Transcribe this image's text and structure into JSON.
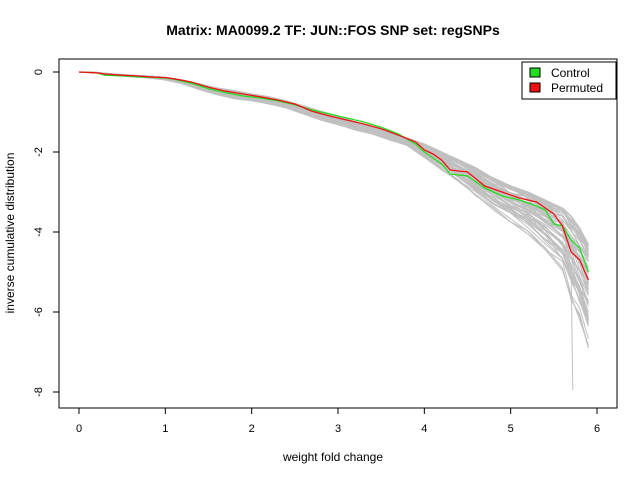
{
  "chart_data": {
    "type": "line",
    "title": "Matrix: MA0099.2 TF: JUN::FOS SNP set: regSNPs",
    "xlabel": "weight fold change",
    "ylabel": "inverse cumulative distribution",
    "xlim": [
      0,
      6
    ],
    "ylim": [
      -8,
      0
    ],
    "xticks": [
      "0",
      "1",
      "2",
      "3",
      "4",
      "5",
      "6"
    ],
    "yticks": [
      "0",
      "-2",
      "-4",
      "-6",
      "-8"
    ],
    "grid": false,
    "legend": {
      "position": "top-right",
      "entries": [
        {
          "label": "Control",
          "color": "#22dd22"
        },
        {
          "label": "Permuted",
          "color": "#ee1111"
        }
      ]
    },
    "background_series": {
      "color": "#c0c0c0",
      "count": 60,
      "description_values": {
        "x": [
          0,
          0.2,
          0.4,
          0.6,
          0.8,
          1.0,
          1.2,
          1.4,
          1.6,
          1.8,
          2.0,
          2.2,
          2.4,
          2.6,
          2.8,
          3.0,
          3.2,
          3.4,
          3.6,
          3.8,
          4.0,
          4.2,
          4.4,
          4.6,
          4.8,
          5.0,
          5.2,
          5.4,
          5.6,
          5.7,
          5.8,
          5.9
        ],
        "y_upper": [
          0,
          -0.01,
          -0.05,
          -0.08,
          -0.1,
          -0.13,
          -0.2,
          -0.3,
          -0.4,
          -0.47,
          -0.55,
          -0.62,
          -0.72,
          -0.85,
          -0.98,
          -1.1,
          -1.25,
          -1.37,
          -1.5,
          -1.65,
          -1.8,
          -2.0,
          -2.2,
          -2.4,
          -2.65,
          -2.85,
          -3.0,
          -3.2,
          -3.4,
          -3.6,
          -3.9,
          -4.3
        ],
        "y_lower": [
          0,
          -0.02,
          -0.08,
          -0.12,
          -0.15,
          -0.2,
          -0.3,
          -0.45,
          -0.58,
          -0.67,
          -0.72,
          -0.8,
          -0.9,
          -1.05,
          -1.2,
          -1.32,
          -1.45,
          -1.55,
          -1.7,
          -1.85,
          -2.15,
          -2.45,
          -2.75,
          -3.1,
          -3.45,
          -3.75,
          -4.05,
          -4.5,
          -5.0,
          -5.7,
          -6.2,
          -6.9
        ]
      },
      "min_y": -7.95
    },
    "series": [
      {
        "name": "Control",
        "color": "#22dd22",
        "x": [
          0,
          0.2,
          0.3,
          0.5,
          0.7,
          0.8,
          1.0,
          1.1,
          1.3,
          1.5,
          1.7,
          1.9,
          2.1,
          2.3,
          2.5,
          2.7,
          2.9,
          3.1,
          3.3,
          3.5,
          3.7,
          3.9,
          4.0,
          4.1,
          4.2,
          4.3,
          4.5,
          4.7,
          4.9,
          5.1,
          5.3,
          5.4,
          5.5,
          5.6,
          5.7,
          5.8,
          5.9
        ],
        "y": [
          0,
          -0.02,
          -0.08,
          -0.1,
          -0.12,
          -0.13,
          -0.15,
          -0.18,
          -0.28,
          -0.42,
          -0.52,
          -0.6,
          -0.65,
          -0.72,
          -0.82,
          -0.95,
          -1.05,
          -1.15,
          -1.25,
          -1.38,
          -1.55,
          -1.8,
          -2.0,
          -2.15,
          -2.3,
          -2.55,
          -2.6,
          -2.9,
          -3.1,
          -3.2,
          -3.35,
          -3.45,
          -3.8,
          -3.85,
          -4.2,
          -4.4,
          -5.0
        ]
      },
      {
        "name": "Permuted",
        "color": "#ee1111",
        "x": [
          0,
          0.2,
          0.3,
          0.5,
          0.7,
          0.8,
          1.0,
          1.1,
          1.3,
          1.5,
          1.7,
          1.9,
          2.1,
          2.3,
          2.5,
          2.7,
          2.9,
          3.1,
          3.3,
          3.5,
          3.7,
          3.9,
          4.0,
          4.1,
          4.2,
          4.3,
          4.5,
          4.7,
          4.9,
          5.1,
          5.3,
          5.4,
          5.5,
          5.6,
          5.7,
          5.8,
          5.9
        ],
        "y": [
          0,
          -0.02,
          -0.05,
          -0.08,
          -0.1,
          -0.12,
          -0.14,
          -0.17,
          -0.25,
          -0.38,
          -0.48,
          -0.55,
          -0.62,
          -0.7,
          -0.8,
          -0.98,
          -1.1,
          -1.2,
          -1.3,
          -1.42,
          -1.58,
          -1.75,
          -1.95,
          -2.05,
          -2.2,
          -2.45,
          -2.5,
          -2.85,
          -3.0,
          -3.15,
          -3.25,
          -3.4,
          -3.55,
          -3.85,
          -4.5,
          -4.7,
          -5.2
        ]
      }
    ]
  }
}
